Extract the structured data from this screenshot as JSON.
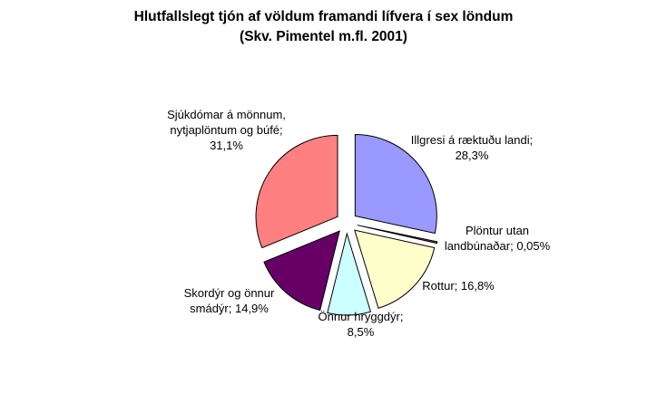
{
  "chart_data": {
    "type": "pie",
    "title": "Hlutfallslegt tjón af völdum framandi lífvera í sex löndum",
    "subtitle": "(Skv. Pimentel m.fl. 2001)",
    "slices": [
      {
        "label": "Illgresi á ræktuðu landi; 28,3%",
        "value": 28.3,
        "color": "#9999ff"
      },
      {
        "label": "Plöntur utan landbúnaðar; 0,05%",
        "value": 0.05,
        "color": "#993366"
      },
      {
        "label": "Rottur; 16,8%",
        "value": 16.8,
        "color": "#ffffcc"
      },
      {
        "label": "Önnur hryggdýr; 8,5%",
        "value": 8.5,
        "color": "#ccffff"
      },
      {
        "label": "Skordýr og önnur smádýr; 14,9%",
        "value": 14.9,
        "color": "#660066"
      },
      {
        "label": "Sjúkdómar á mönnum, nytjaplöntum og búfé; 31,1%",
        "value": 31.1,
        "color": "#ff8080"
      }
    ]
  }
}
